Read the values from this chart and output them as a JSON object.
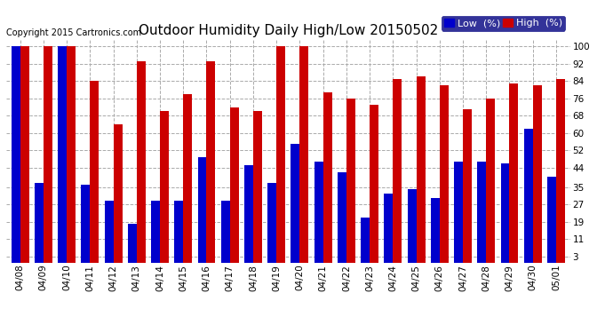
{
  "title": "Outdoor Humidity Daily High/Low 20150502",
  "copyright": "Copyright 2015 Cartronics.com",
  "dates": [
    "04/08",
    "04/09",
    "04/10",
    "04/11",
    "04/12",
    "04/13",
    "04/14",
    "04/15",
    "04/16",
    "04/17",
    "04/18",
    "04/19",
    "04/20",
    "04/21",
    "04/22",
    "04/23",
    "04/24",
    "04/25",
    "04/26",
    "04/27",
    "04/28",
    "04/29",
    "04/30",
    "05/01"
  ],
  "high": [
    100,
    100,
    100,
    84,
    64,
    93,
    70,
    78,
    93,
    72,
    70,
    100,
    100,
    79,
    76,
    73,
    85,
    86,
    82,
    71,
    76,
    83,
    82,
    85
  ],
  "low": [
    100,
    37,
    100,
    36,
    29,
    18,
    29,
    29,
    49,
    29,
    45,
    37,
    55,
    47,
    42,
    21,
    32,
    34,
    30,
    47,
    47,
    46,
    62,
    40
  ],
  "bar_width": 0.38,
  "blue_color": "#0000cc",
  "red_color": "#cc0000",
  "bg_color": "#ffffff",
  "grid_color": "#aaaaaa",
  "ylim": [
    0,
    103
  ],
  "yticks": [
    3,
    11,
    19,
    27,
    35,
    44,
    52,
    60,
    68,
    76,
    84,
    92,
    100
  ],
  "title_fontsize": 11,
  "tick_fontsize": 7.5,
  "legend_fontsize": 8,
  "copyright_fontsize": 7
}
